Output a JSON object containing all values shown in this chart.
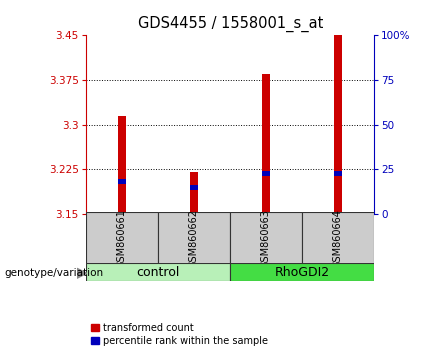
{
  "title": "GDS4455 / 1558001_s_at",
  "samples": [
    "GSM860661",
    "GSM860662",
    "GSM860663",
    "GSM860664"
  ],
  "groups": [
    "control",
    "control",
    "RhoGDI2",
    "RhoGDI2"
  ],
  "group_colors": {
    "control": "#b8f0b8",
    "RhoGDI2": "#44dd44"
  },
  "red_bar_tops": [
    3.315,
    3.22,
    3.385,
    3.45
  ],
  "blue_bar_tops": [
    3.205,
    3.195,
    3.218,
    3.218
  ],
  "bar_base": 3.15,
  "ylim_left": [
    3.15,
    3.45
  ],
  "ylim_right": [
    0,
    100
  ],
  "yticks_left": [
    3.15,
    3.225,
    3.3,
    3.375,
    3.45
  ],
  "ytick_labels_left": [
    "3.15",
    "3.225",
    "3.3",
    "3.375",
    "3.45"
  ],
  "yticks_right": [
    0,
    25,
    50,
    75,
    100
  ],
  "ytick_labels_right": [
    "0",
    "25",
    "50",
    "75",
    "100%"
  ],
  "left_axis_color": "#cc0000",
  "right_axis_color": "#0000bb",
  "bar_color_red": "#cc0000",
  "bar_color_blue": "#0000bb",
  "bar_width": 0.12,
  "label_area_bg": "#cccccc",
  "genotype_label": "genotype/variation",
  "legend_red": "transformed count",
  "legend_blue": "percentile rank within the sample",
  "blue_bar_height": 0.008,
  "grid_color": "#000000"
}
